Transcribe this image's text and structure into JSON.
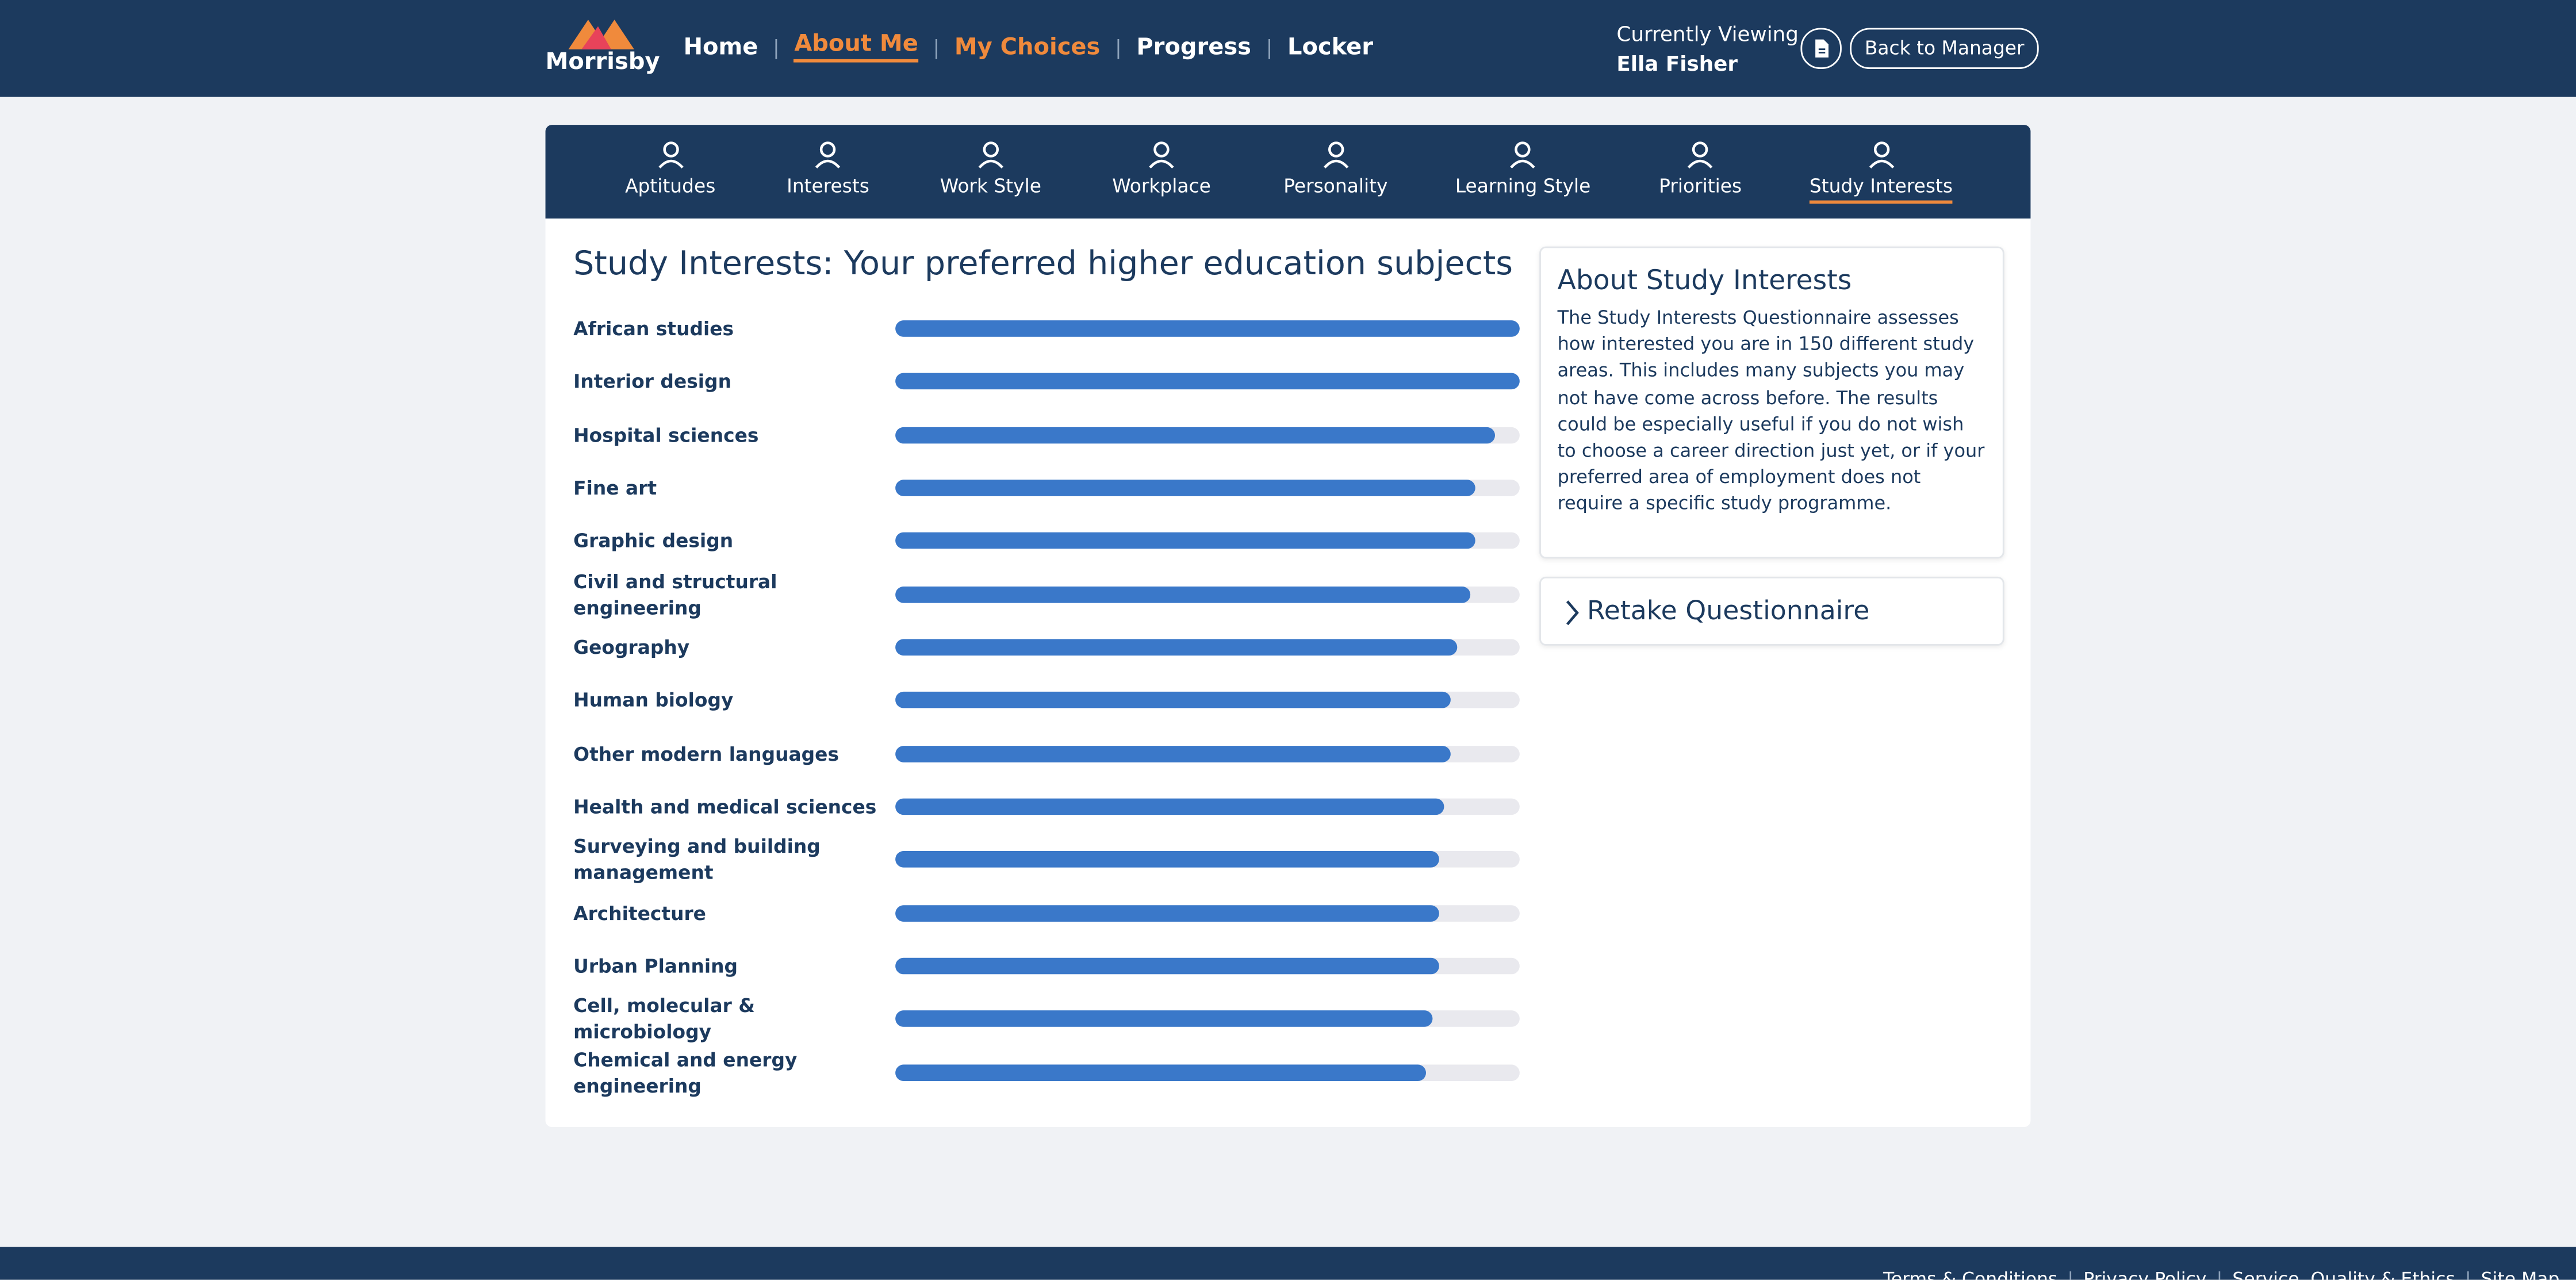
{
  "header": {
    "logo": "Morrisby",
    "nav": [
      "Home",
      "About Me",
      "My Choices",
      "Progress",
      "Locker"
    ],
    "viewing_label": "Currently Viewing",
    "viewing_name": "Ella Fisher",
    "back_button": "Back to Manager"
  },
  "tabs": {
    "items": [
      "Aptitudes",
      "Interests",
      "Work Style",
      "Workplace",
      "Personality",
      "Learning Style",
      "Priorities",
      "Study Interests"
    ],
    "active": 7
  },
  "main": {
    "title": "Study Interests: Your preferred higher education subjects",
    "subjects": [
      {
        "name": "African studies",
        "value": 100
      },
      {
        "name": "Interior design",
        "value": 100
      },
      {
        "name": "Hospital sciences",
        "value": 96
      },
      {
        "name": "Fine art",
        "value": 93
      },
      {
        "name": "Graphic design",
        "value": 93
      },
      {
        "name": "Civil and structural engineering",
        "value": 92
      },
      {
        "name": "Geography",
        "value": 90
      },
      {
        "name": "Human biology",
        "value": 89
      },
      {
        "name": "Other modern languages",
        "value": 89
      },
      {
        "name": "Health and medical sciences",
        "value": 88
      },
      {
        "name": "Surveying and building management",
        "value": 87
      },
      {
        "name": "Architecture",
        "value": 87
      },
      {
        "name": "Urban Planning",
        "value": 87
      },
      {
        "name": "Cell, molecular & microbiology",
        "value": 86
      },
      {
        "name": "Chemical and energy engineering",
        "value": 85
      }
    ]
  },
  "sidebar": {
    "about_title": "About Study Interests",
    "about_text": "The Study Interests Questionnaire assesses how interested you are in 150 different study areas. This includes many subjects you may not have come across before. The results could be especially useful if you do not wish to choose a career direction just yet, or if your preferred area of employment does not require a specific study programme.",
    "retake": "Retake Questionnaire"
  },
  "footer": {
    "links": [
      "Terms & Conditions",
      "Privacy Policy",
      "Service, Quality & Ethics",
      "Site Map"
    ]
  }
}
